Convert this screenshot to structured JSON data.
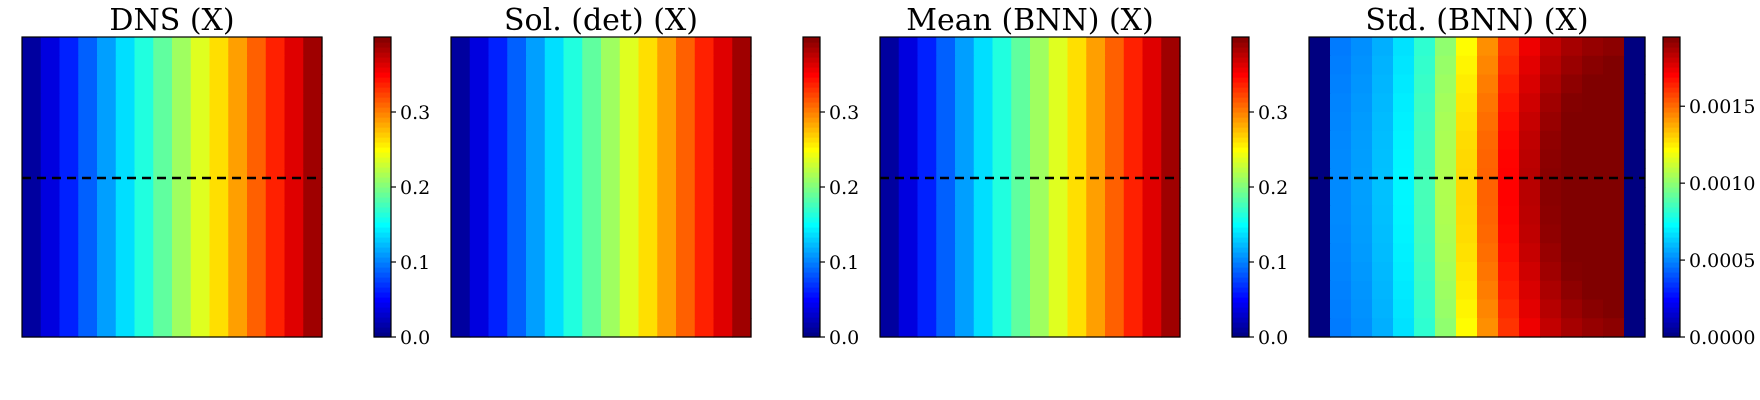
{
  "chart_data": [
    {
      "type": "heatmap",
      "title": "DNS (X)",
      "grid": {
        "rows": 16,
        "cols": 16
      },
      "field": "linear_x",
      "x_range": [
        0.0,
        0.4
      ],
      "dashed_line": true,
      "colorbar": {
        "min": 0.0,
        "max": 0.4,
        "ticks": [
          "0.0",
          "0.1",
          "0.2",
          "0.3"
        ],
        "tick_values": [
          0.0,
          0.1,
          0.2,
          0.3
        ]
      },
      "colormap": "jet"
    },
    {
      "type": "heatmap",
      "title": "Sol. (det) (X)",
      "grid": {
        "rows": 16,
        "cols": 16
      },
      "field": "linear_x",
      "x_range": [
        0.0,
        0.4
      ],
      "dashed_line": false,
      "colorbar": {
        "min": 0.0,
        "max": 0.4,
        "ticks": [
          "0.0",
          "0.1",
          "0.2",
          "0.3"
        ],
        "tick_values": [
          0.0,
          0.1,
          0.2,
          0.3
        ]
      },
      "colormap": "jet"
    },
    {
      "type": "heatmap",
      "title": "Mean (BNN) (X)",
      "grid": {
        "rows": 16,
        "cols": 16
      },
      "field": "linear_x",
      "x_range": [
        0.0,
        0.4
      ],
      "dashed_line": true,
      "colorbar": {
        "min": 0.0,
        "max": 0.4,
        "ticks": [
          "0.0",
          "0.1",
          "0.2",
          "0.3"
        ],
        "tick_values": [
          0.0,
          0.1,
          0.2,
          0.3
        ]
      },
      "colormap": "jet"
    },
    {
      "type": "heatmap",
      "title": "Std. (BNN) (X)",
      "grid": {
        "rows": 16,
        "cols": 16
      },
      "field": "std_profile",
      "x_range": [
        0.0,
        0.00195
      ],
      "dashed_line": true,
      "colorbar": {
        "min": 0.0,
        "max": 0.00195,
        "ticks": [
          "0.0000",
          "0.0005",
          "0.0010",
          "0.0015"
        ],
        "tick_values": [
          0.0,
          0.0005,
          0.001,
          0.0015
        ]
      },
      "colormap": "jet"
    }
  ],
  "colors": {
    "dashed_line": "#000000",
    "frame": "#000000",
    "background": "#ffffff"
  }
}
